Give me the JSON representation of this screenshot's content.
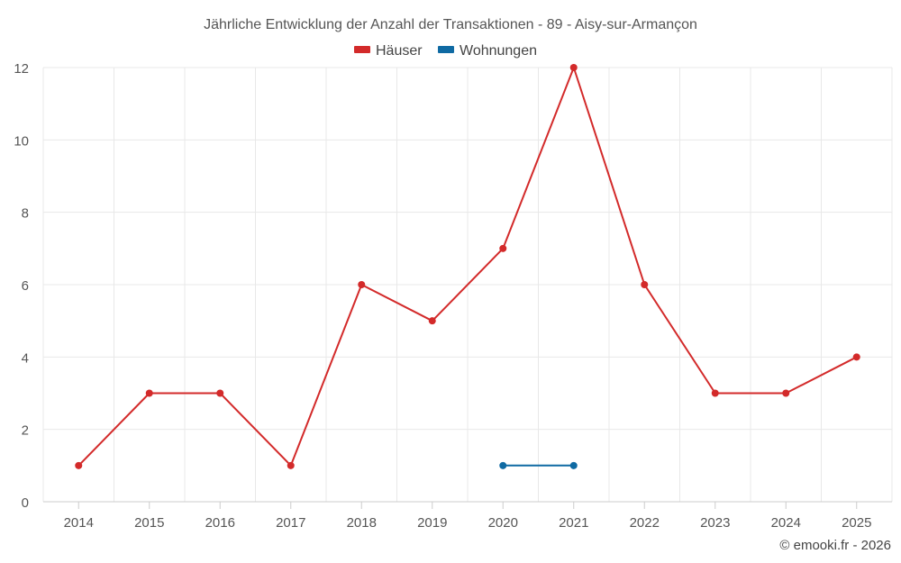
{
  "chart_data": {
    "type": "line",
    "title": "Jährliche Entwicklung der Anzahl der Transaktionen - 89 - Aisy-sur-Armançon",
    "categories": [
      "2014",
      "2015",
      "2016",
      "2017",
      "2018",
      "2019",
      "2020",
      "2021",
      "2022",
      "2023",
      "2024",
      "2025"
    ],
    "series": [
      {
        "name": "Häuser",
        "color": "#d32a2a",
        "values": [
          1,
          3,
          3,
          1,
          6,
          5,
          7,
          12,
          6,
          3,
          3,
          4
        ]
      },
      {
        "name": "Wohnungen",
        "color": "#0f6aa3",
        "values": [
          null,
          null,
          null,
          null,
          null,
          null,
          1,
          1,
          null,
          null,
          null,
          null
        ]
      }
    ],
    "ylim": [
      0,
      12
    ],
    "yticks": [
      0,
      2,
      4,
      6,
      8,
      10,
      12
    ],
    "grid": true,
    "legend_position": "top-center",
    "xlabel": "",
    "ylabel": ""
  },
  "credit": "© emooki.fr - 2026"
}
